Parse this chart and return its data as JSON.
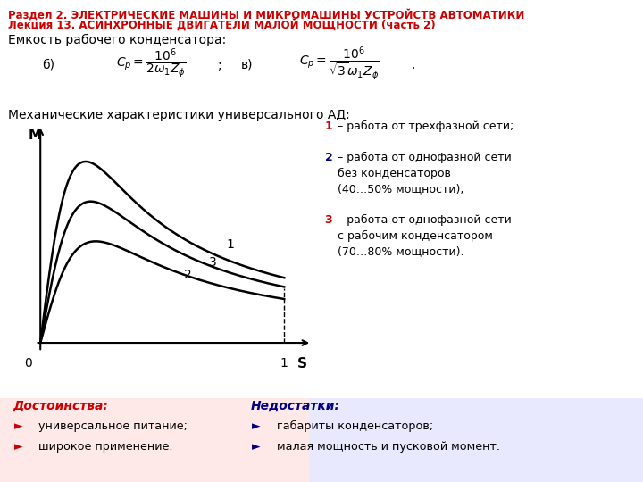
{
  "title_line1": "Раздел 2. ЭЛЕКТРИЧЕСКИЕ МАШИНЫ И МИКРОМАШИНЫ УСТРОЙСТВ АВТОМАТИКИ",
  "title_line2": "Лекция 13. АСИНХРОННЫЕ ДВИГАТЕЛИ МАЛОЙ МОЩНОСТИ (часть 2)",
  "section_capacitor": "Емкость рабочего конденсатора:",
  "label_b": "б)",
  "label_v": "в)",
  "section_mech": "Механические характеристики универсального АД:",
  "legend_1": "1 – работа от трехфазной сети;",
  "legend_2a": "2 – работа от однофазной сети",
  "legend_2b": "без конденсаторов",
  "legend_2c": "(40…50% мощности);",
  "legend_3a": "3 – работа от однофазной сети",
  "legend_3b": "с рабочим конденсатором",
  "legend_3c": "(70…80% мощности).",
  "advantages_title": "Достоинства:",
  "advantages": [
    "универсальное питание;",
    "широкое применение."
  ],
  "disadvantages_title": "Недостатки:",
  "disadvantages": [
    "габариты конденсаторов;",
    "малая мощность и пусковой момент."
  ],
  "bg_color": "#ffffff",
  "title_color": "#cc0000",
  "text_color": "#000000",
  "adv_title_color": "#cc0000",
  "disadv_title_color": "#000080",
  "adv_bg": "#ffe8e8",
  "disadv_bg": "#e8e8ff",
  "bullet_adv_color": "#cc0000",
  "bullet_disadv_color": "#000080",
  "curve_color": "#000000",
  "legend_1_color": "#cc0000",
  "legend_2_color": "#000080",
  "legend_3_color": "#cc0000",
  "axis_label_M": "M",
  "axis_label_S": "S",
  "axis_label_0": "0",
  "axis_label_1": "1"
}
